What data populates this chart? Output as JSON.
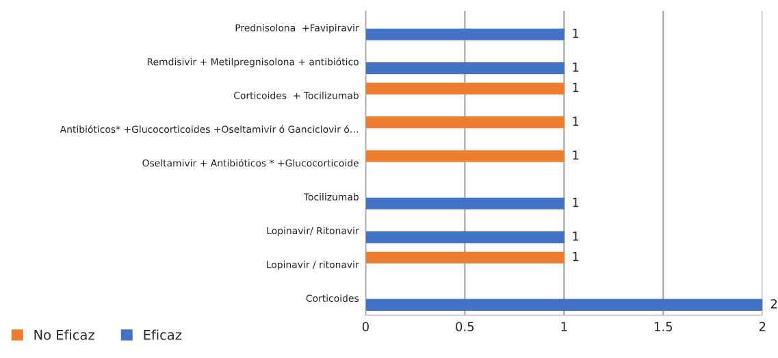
{
  "chart_data": {
    "type": "bar",
    "orientation": "horizontal",
    "categories": [
      "Prednisolona  +Favipiravir",
      "Remdisivir + Metilpregnisolona + antibiótico",
      "Corticoides  + Tocilizumab",
      "Antibióticos* +Glucocorticoides +Oseltamivir ó Ganciclovir ó…",
      "Oseltamivir + Antibióticos * +Glucocorticoide",
      "Tocilizumab",
      "Lopinavir/ Ritonavir",
      "Lopinavir / ritonavir",
      "Corticoides"
    ],
    "series": [
      {
        "name": "No Eficaz",
        "color": "#ed7d31",
        "values": [
          0,
          0,
          1,
          1,
          1,
          0,
          0,
          1,
          0
        ],
        "value_labels": [
          null,
          null,
          "1",
          "1",
          "1",
          null,
          null,
          "1",
          null
        ]
      },
      {
        "name": "Eficaz",
        "color": "#4472c4",
        "values": [
          1,
          1,
          0,
          0,
          0,
          1,
          1,
          0,
          2
        ],
        "value_labels": [
          "1",
          "1",
          null,
          null,
          null,
          "1",
          "1",
          null,
          "2"
        ]
      }
    ],
    "xlim": [
      0,
      2
    ],
    "xticks": [
      0,
      0.5,
      1,
      1.5,
      2
    ],
    "grid": "x",
    "legend": "bottom left"
  }
}
